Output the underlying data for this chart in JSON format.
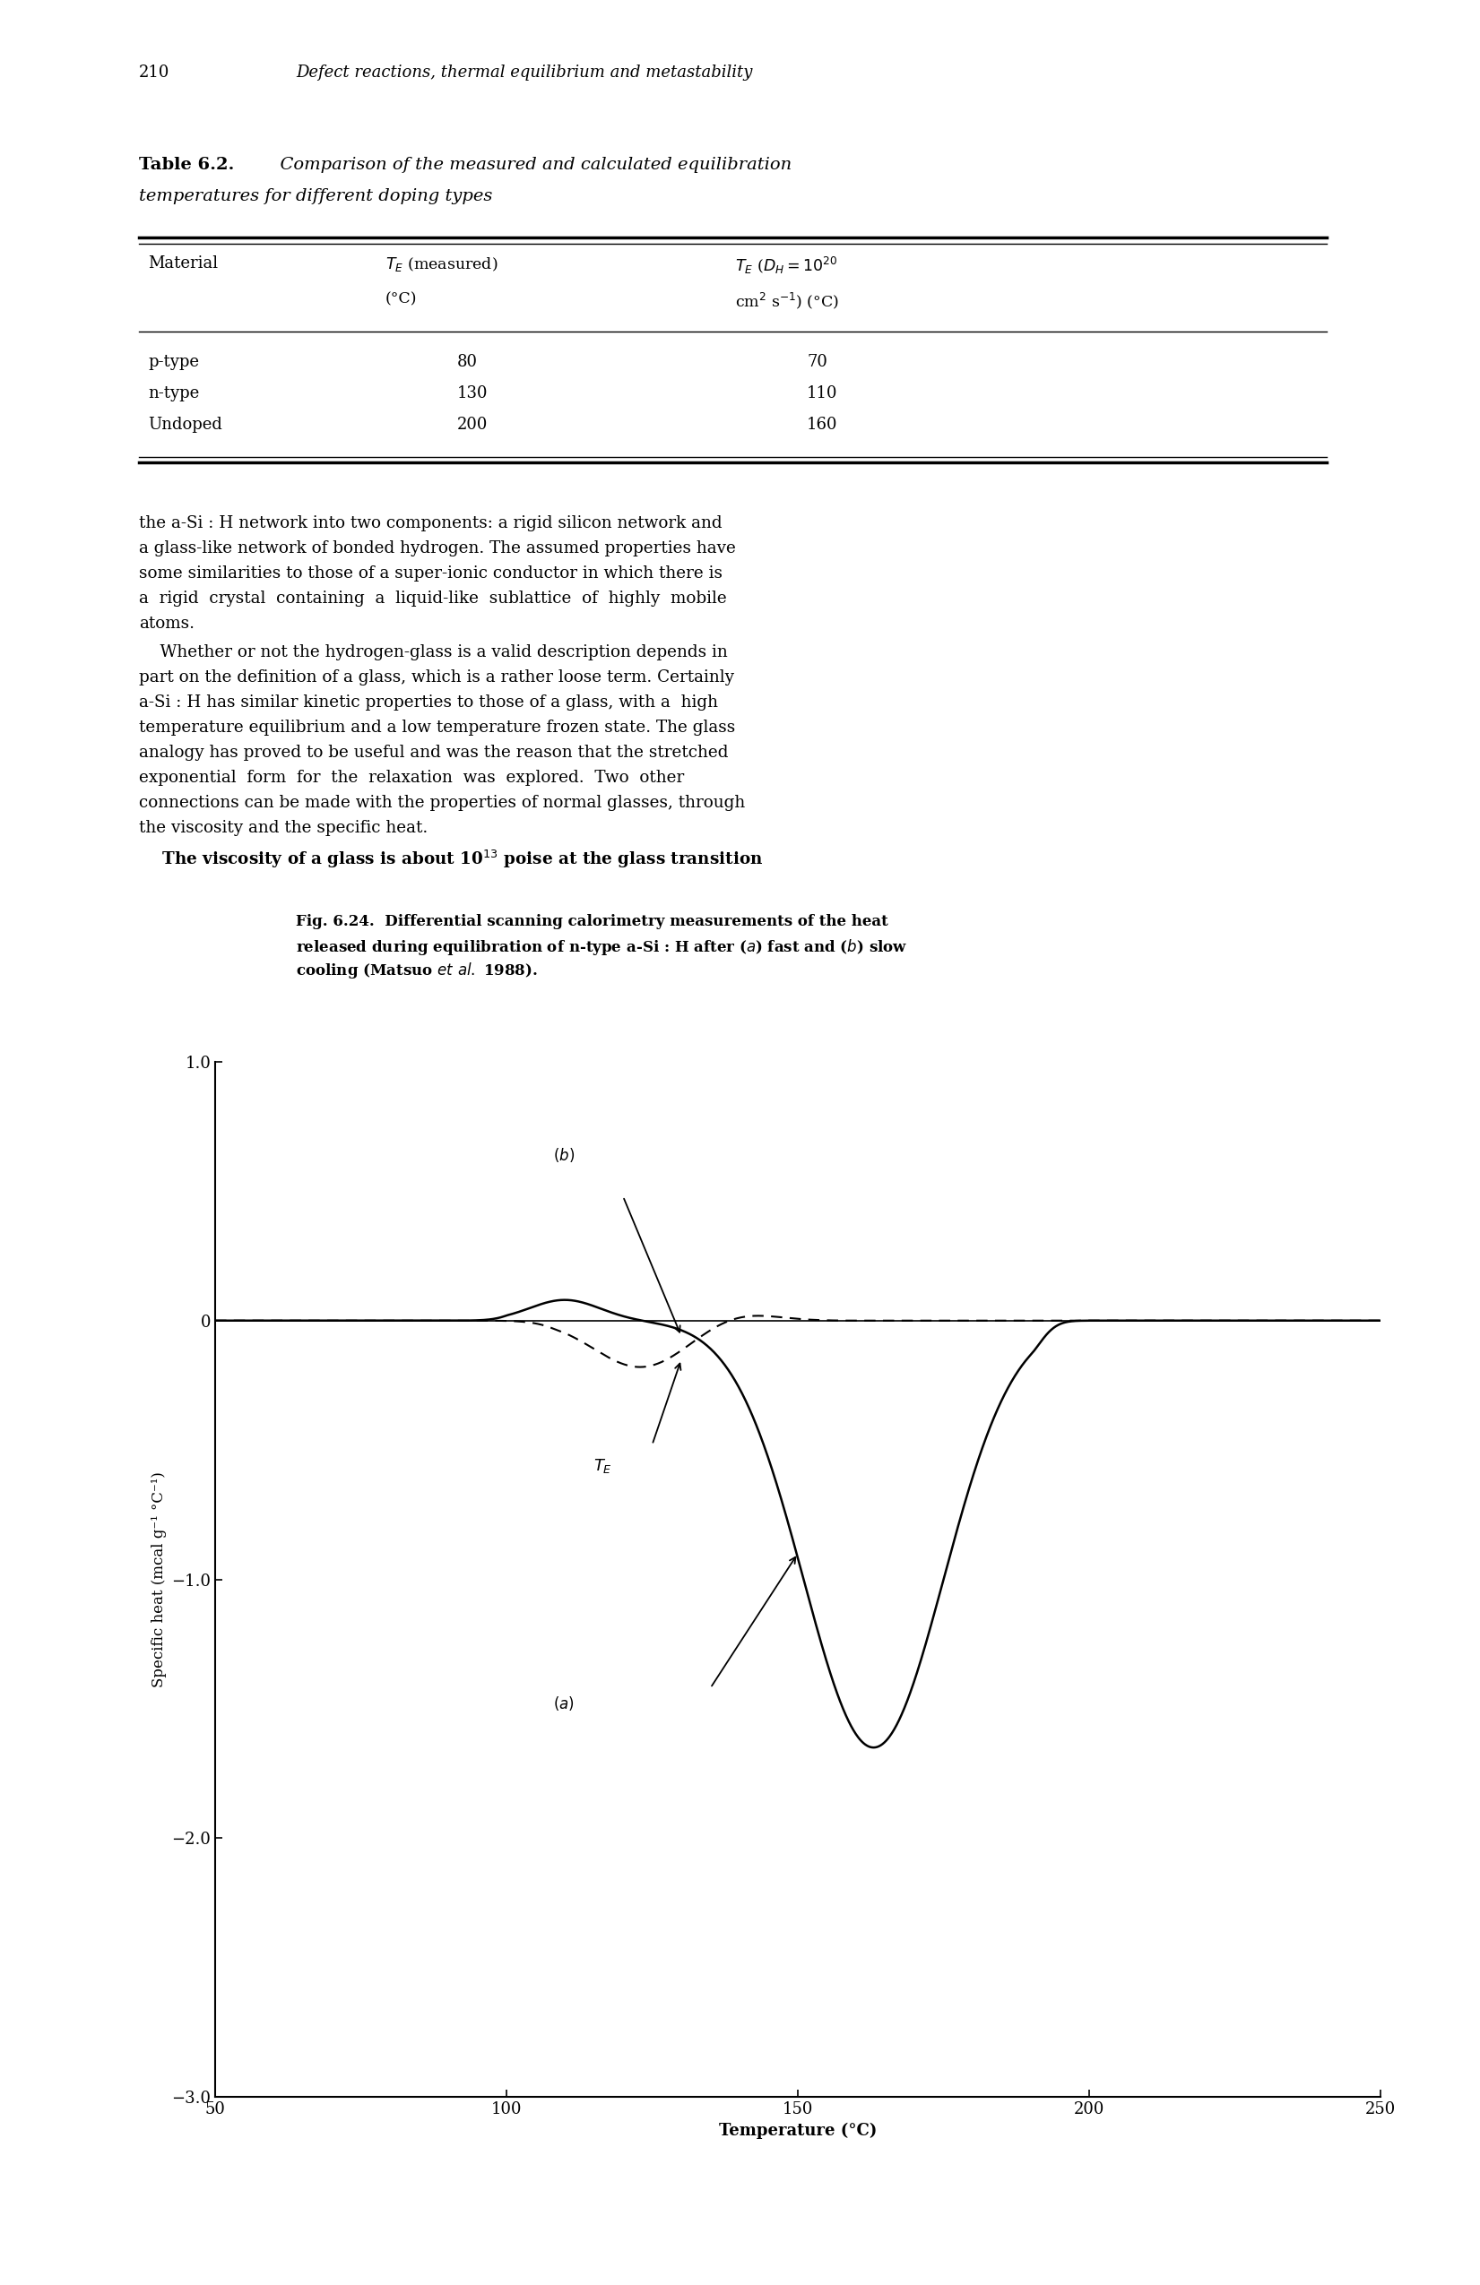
{
  "page_width": 16.51,
  "page_height": 25.5,
  "bg_color": "#ffffff",
  "page_number": "210",
  "page_header": "Defect reactions, thermal equilibrium and metastability",
  "table_data": [
    [
      "p-type",
      "80",
      "70"
    ],
    [
      "n-type",
      "130",
      "110"
    ],
    [
      "Undoped",
      "200",
      "160"
    ]
  ],
  "plot_xlim": [
    50,
    250
  ],
  "plot_ylim": [
    -3.0,
    1.0
  ],
  "plot_xticks": [
    50,
    100,
    150,
    200,
    250
  ],
  "plot_yticks": [
    1.0,
    0,
    -1.0,
    -2.0,
    -3.0
  ],
  "plot_xlabel": "Temperature (°C)",
  "plot_ylabel": "Specific heat (mcal g⁻¹ °C⁻¹)"
}
